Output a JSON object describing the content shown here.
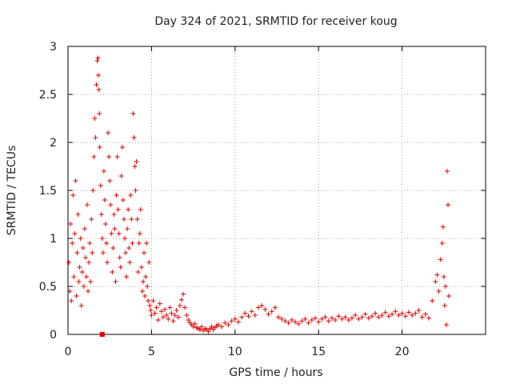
{
  "chart_data": {
    "type": "scatter",
    "title": "Day 324 of 2021, SRMTID for receiver koug",
    "xlabel": "GPS time / hours",
    "ylabel": "SRMTID / TECUs",
    "xlim": [
      0,
      25
    ],
    "ylim": [
      0,
      3
    ],
    "x_ticks": [
      0,
      5,
      10,
      15,
      20
    ],
    "x_tick_labels": [
      "0",
      "5",
      "10",
      "15",
      "20"
    ],
    "y_ticks": [
      0,
      0.5,
      1,
      1.5,
      2,
      2.5,
      3
    ],
    "y_tick_labels": [
      "0",
      "0.5",
      "1",
      "1.5",
      "2",
      "2.5",
      "3"
    ],
    "grid": true,
    "marker": "plus",
    "color": "#e00000",
    "series": [
      {
        "name": "SRMTID",
        "x": [
          0.05,
          0.1,
          0.15,
          0.2,
          0.25,
          0.3,
          0.35,
          0.4,
          0.45,
          0.5,
          0.55,
          0.6,
          0.65,
          0.7,
          0.75,
          0.8,
          0.85,
          0.9,
          0.95,
          1.0,
          1.05,
          1.1,
          1.15,
          1.2,
          1.25,
          1.3,
          1.35,
          1.4,
          1.45,
          1.5,
          1.55,
          1.6,
          1.65,
          1.7,
          1.75,
          1.8,
          1.82,
          1.85,
          1.88,
          1.9,
          1.95,
          2.0,
          2.05,
          2.1,
          2.15,
          2.2,
          2.25,
          2.3,
          2.35,
          2.4,
          2.45,
          2.5,
          2.55,
          2.6,
          2.65,
          2.7,
          2.75,
          2.8,
          2.85,
          2.9,
          2.95,
          3.0,
          3.05,
          3.1,
          3.15,
          3.2,
          3.25,
          3.3,
          3.35,
          3.4,
          3.45,
          3.5,
          3.55,
          3.6,
          3.65,
          3.7,
          3.75,
          3.8,
          3.85,
          3.9,
          3.95,
          4.0,
          4.05,
          4.1,
          4.15,
          4.2,
          4.25,
          4.3,
          4.35,
          4.4,
          4.45,
          4.5,
          4.55,
          4.6,
          4.65,
          4.7,
          4.75,
          4.8,
          4.85,
          4.9,
          4.95,
          5.0,
          5.1,
          5.2,
          5.3,
          5.4,
          5.5,
          5.6,
          5.7,
          5.8,
          5.9,
          6.0,
          6.1,
          6.2,
          6.3,
          6.4,
          6.5,
          6.6,
          6.7,
          6.8,
          6.9,
          7.0,
          7.1,
          7.2,
          7.3,
          7.4,
          7.5,
          7.6,
          7.7,
          7.8,
          7.9,
          8.0,
          8.1,
          8.2,
          8.3,
          8.4,
          8.5,
          8.6,
          8.7,
          8.8,
          8.9,
          9.0,
          9.2,
          9.4,
          9.6,
          9.8,
          10.0,
          10.2,
          10.4,
          10.6,
          10.8,
          11.0,
          11.2,
          11.4,
          11.6,
          11.8,
          12.0,
          12.2,
          12.4,
          12.6,
          12.8,
          13.0,
          13.2,
          13.4,
          13.6,
          13.8,
          14.0,
          14.2,
          14.4,
          14.6,
          14.8,
          15.0,
          15.2,
          15.4,
          15.6,
          15.8,
          16.0,
          16.2,
          16.4,
          16.6,
          16.8,
          17.0,
          17.2,
          17.4,
          17.6,
          17.8,
          18.0,
          18.2,
          18.4,
          18.6,
          18.8,
          19.0,
          19.2,
          19.4,
          19.6,
          19.8,
          20.0,
          20.2,
          20.4,
          20.6,
          20.8,
          21.0,
          21.2,
          21.4,
          21.6,
          21.8,
          22.0,
          22.1,
          22.2,
          22.3,
          22.4,
          22.45,
          22.5,
          22.55,
          22.6,
          22.65,
          22.7,
          22.75,
          22.8
        ],
        "y": [
          0.75,
          0.45,
          1.15,
          0.35,
          0.95,
          1.45,
          0.6,
          1.05,
          1.6,
          0.4,
          0.85,
          1.25,
          0.55,
          0.7,
          1.0,
          0.3,
          0.65,
          0.9,
          0.5,
          1.1,
          0.8,
          0.6,
          1.35,
          0.45,
          0.75,
          0.95,
          0.55,
          1.2,
          0.85,
          1.5,
          1.85,
          2.25,
          2.05,
          2.6,
          2.85,
          2.88,
          2.7,
          2.55,
          2.3,
          1.95,
          1.55,
          1.25,
          1.0,
          0.85,
          1.7,
          1.4,
          1.15,
          0.95,
          0.75,
          2.1,
          1.85,
          1.6,
          1.35,
          1.05,
          0.65,
          0.9,
          1.25,
          1.1,
          0.55,
          1.45,
          1.85,
          1.3,
          1.05,
          0.8,
          0.7,
          1.65,
          1.95,
          1.4,
          1.2,
          1.0,
          0.85,
          0.6,
          1.1,
          1.3,
          0.9,
          0.75,
          1.45,
          1.2,
          0.95,
          2.3,
          2.05,
          1.75,
          1.5,
          1.8,
          1.2,
          0.65,
          0.95,
          1.05,
          1.3,
          0.7,
          0.45,
          0.55,
          0.85,
          0.4,
          0.6,
          0.95,
          0.5,
          0.35,
          0.75,
          0.3,
          0.25,
          0.2,
          0.35,
          0.22,
          0.28,
          0.15,
          0.32,
          0.24,
          0.18,
          0.26,
          0.2,
          0.16,
          0.28,
          0.22,
          0.14,
          0.2,
          0.25,
          0.18,
          0.3,
          0.36,
          0.42,
          0.28,
          0.2,
          0.15,
          0.12,
          0.1,
          0.08,
          0.11,
          0.07,
          0.06,
          0.05,
          0.08,
          0.04,
          0.06,
          0.05,
          0.03,
          0.06,
          0.08,
          0.05,
          0.07,
          0.09,
          0.1,
          0.08,
          0.12,
          0.1,
          0.14,
          0.16,
          0.13,
          0.18,
          0.22,
          0.19,
          0.24,
          0.2,
          0.28,
          0.3,
          0.26,
          0.21,
          0.24,
          0.28,
          0.18,
          0.16,
          0.14,
          0.12,
          0.15,
          0.13,
          0.11,
          0.14,
          0.16,
          0.12,
          0.15,
          0.17,
          0.13,
          0.16,
          0.18,
          0.14,
          0.17,
          0.15,
          0.19,
          0.16,
          0.18,
          0.15,
          0.17,
          0.2,
          0.16,
          0.18,
          0.21,
          0.17,
          0.19,
          0.22,
          0.18,
          0.2,
          0.23,
          0.19,
          0.21,
          0.24,
          0.2,
          0.22,
          0.19,
          0.23,
          0.2,
          0.22,
          0.25,
          0.18,
          0.21,
          0.17,
          0.35,
          0.55,
          0.62,
          0.45,
          0.78,
          0.95,
          1.12,
          0.6,
          0.3,
          0.5,
          0.1,
          1.7,
          1.35,
          0.4
        ]
      }
    ],
    "extra_points": {
      "x": [
        2.05
      ],
      "y": [
        0.0
      ],
      "marker": "square"
    }
  }
}
